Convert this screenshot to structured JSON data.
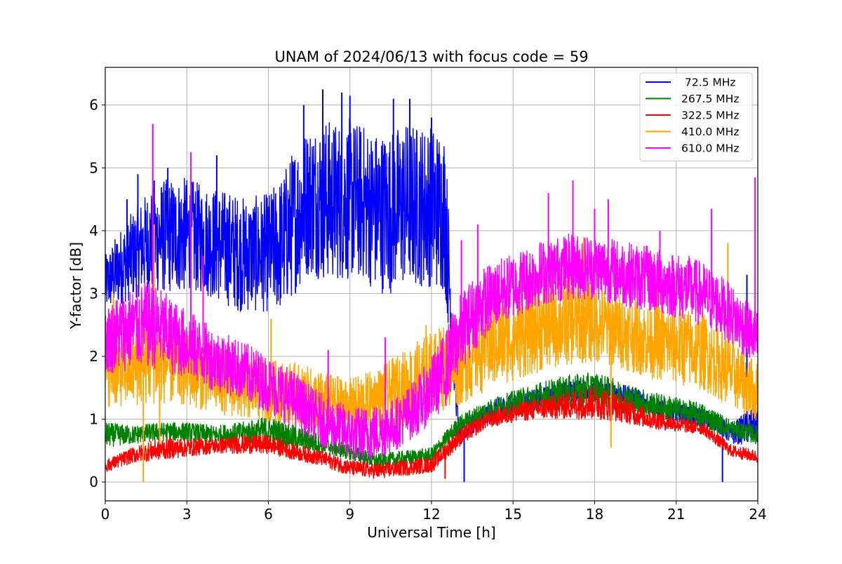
{
  "chart_data": {
    "type": "line",
    "title": "UNAM of 2024/06/13 with focus code = 59",
    "xlabel": "Universal Time [h]",
    "ylabel": "Y-factor [dB]",
    "xlim": [
      0,
      24
    ],
    "ylim": [
      -0.3,
      6.6
    ],
    "xticks": [
      0,
      3,
      6,
      9,
      12,
      15,
      18,
      21,
      24
    ],
    "yticks": [
      0,
      1,
      2,
      3,
      4,
      5,
      6
    ],
    "grid": true,
    "legend_position": "top-right",
    "series": [
      {
        "name": " 72.5 MHz",
        "color": "#0000ff",
        "x": [
          0,
          0.5,
          1,
          1.5,
          2,
          2.5,
          3,
          3.5,
          4,
          4.5,
          5,
          5.5,
          6,
          6.5,
          7,
          7.5,
          8,
          8.5,
          9,
          9.5,
          10,
          10.5,
          11,
          11.5,
          12,
          12.5,
          13,
          13.5,
          14,
          14.5,
          15,
          15.5,
          16,
          16.5,
          17,
          17.5,
          18,
          18.5,
          19,
          19.5,
          20,
          20.5,
          21,
          21.5,
          22,
          22.5,
          23,
          23.5,
          24
        ],
        "low": [
          2.7,
          2.8,
          2.9,
          3.0,
          3.0,
          3.0,
          3.0,
          3.0,
          2.9,
          2.8,
          2.7,
          2.7,
          2.7,
          2.7,
          3.0,
          3.3,
          3.2,
          3.2,
          3.2,
          3.2,
          3.0,
          3.0,
          3.1,
          3.1,
          3.1,
          3.0,
          0.6,
          0.75,
          0.9,
          1.0,
          1.05,
          1.1,
          1.15,
          1.2,
          1.25,
          1.3,
          1.3,
          1.3,
          1.25,
          1.2,
          1.1,
          1.0,
          0.95,
          0.9,
          0.85,
          0.8,
          0.6,
          0.6,
          0.6
        ],
        "high": [
          3.6,
          4.0,
          4.3,
          4.6,
          4.8,
          4.85,
          4.85,
          4.75,
          4.7,
          4.65,
          4.55,
          4.55,
          4.6,
          4.9,
          5.4,
          5.7,
          5.8,
          5.75,
          5.8,
          5.7,
          5.6,
          5.6,
          5.75,
          5.7,
          5.7,
          5.6,
          0.9,
          1.1,
          1.25,
          1.35,
          1.4,
          1.45,
          1.5,
          1.55,
          1.6,
          1.65,
          1.65,
          1.6,
          1.55,
          1.5,
          1.4,
          1.3,
          1.25,
          1.2,
          1.15,
          1.1,
          0.9,
          1.1,
          1.3
        ],
        "spikes": [
          [
            0.8,
            4.5
          ],
          [
            1.2,
            4.9
          ],
          [
            1.8,
            4.8
          ],
          [
            2.3,
            5.0
          ],
          [
            4.1,
            5.2
          ],
          [
            7.3,
            6.0
          ],
          [
            8.0,
            6.25
          ],
          [
            8.7,
            6.2
          ],
          [
            9.0,
            6.15
          ],
          [
            10.6,
            6.1
          ],
          [
            11.2,
            6.1
          ],
          [
            12.0,
            5.8
          ],
          [
            13.2,
            0.0
          ],
          [
            22.7,
            0.0
          ],
          [
            23.6,
            3.3
          ]
        ]
      },
      {
        "name": "267.5 MHz",
        "color": "#008000",
        "x": [
          0,
          1,
          2,
          3,
          4,
          5,
          6,
          7,
          8,
          9,
          10,
          11,
          12,
          13,
          14,
          15,
          16,
          17,
          18,
          19,
          20,
          21,
          22,
          23,
          24
        ],
        "low": [
          0.55,
          0.6,
          0.65,
          0.65,
          0.6,
          0.6,
          0.6,
          0.5,
          0.45,
          0.35,
          0.2,
          0.25,
          0.3,
          0.75,
          0.95,
          1.05,
          1.1,
          1.15,
          1.2,
          1.1,
          1.0,
          0.95,
          0.85,
          0.7,
          0.6
        ],
        "high": [
          0.95,
          0.9,
          0.95,
          0.95,
          0.9,
          0.95,
          1.05,
          0.9,
          0.75,
          0.6,
          0.45,
          0.5,
          0.55,
          1.05,
          1.3,
          1.45,
          1.6,
          1.7,
          1.75,
          1.6,
          1.45,
          1.35,
          1.25,
          1.0,
          0.9
        ],
        "spikes": []
      },
      {
        "name": "322.5 MHz",
        "color": "#ff0000",
        "x": [
          0,
          1,
          2,
          3,
          4,
          5,
          6,
          7,
          8,
          9,
          10,
          11,
          12,
          13,
          14,
          15,
          16,
          17,
          18,
          19,
          20,
          21,
          22,
          23,
          24
        ],
        "low": [
          0.15,
          0.3,
          0.35,
          0.4,
          0.45,
          0.45,
          0.45,
          0.35,
          0.25,
          0.1,
          0.05,
          0.1,
          0.15,
          0.55,
          0.85,
          0.95,
          1.0,
          1.0,
          1.0,
          0.95,
          0.85,
          0.8,
          0.75,
          0.4,
          0.3
        ],
        "high": [
          0.35,
          0.55,
          0.7,
          0.7,
          0.7,
          0.75,
          0.75,
          0.6,
          0.5,
          0.35,
          0.3,
          0.35,
          0.4,
          0.85,
          1.1,
          1.25,
          1.35,
          1.45,
          1.55,
          1.4,
          1.15,
          1.05,
          0.95,
          0.6,
          0.5
        ],
        "spikes": [
          [
            12.5,
            0.05
          ],
          [
            16.3,
            1.3
          ]
        ]
      },
      {
        "name": "410.0 MHz",
        "color": "#ffa500",
        "x": [
          0,
          1,
          2,
          3,
          4,
          5,
          6,
          7,
          8,
          9,
          10,
          11,
          12,
          13,
          14,
          15,
          16,
          17,
          18,
          19,
          20,
          21,
          22,
          23,
          24
        ],
        "low": [
          1.2,
          1.2,
          1.25,
          1.2,
          1.1,
          1.0,
          0.95,
          0.9,
          0.8,
          0.8,
          0.85,
          0.9,
          1.1,
          1.2,
          1.45,
          1.6,
          1.75,
          1.85,
          1.9,
          1.8,
          1.65,
          1.55,
          1.45,
          1.2,
          0.9
        ],
        "high": [
          2.4,
          2.4,
          2.6,
          2.4,
          2.2,
          2.0,
          1.95,
          1.9,
          1.75,
          1.65,
          1.8,
          2.1,
          2.4,
          2.6,
          2.85,
          3.0,
          3.2,
          3.25,
          3.2,
          3.0,
          2.85,
          2.8,
          2.7,
          2.3,
          1.9
        ],
        "spikes": [
          [
            0.3,
            3.0
          ],
          [
            1.4,
            0.0
          ],
          [
            1.8,
            4.1
          ],
          [
            2.0,
            0.6
          ],
          [
            6.1,
            2.6
          ],
          [
            11.8,
            2.5
          ],
          [
            15.5,
            3.6
          ],
          [
            17.6,
            3.9
          ],
          [
            18.6,
            0.55
          ],
          [
            20.3,
            3.4
          ],
          [
            22.9,
            3.8
          ]
        ]
      },
      {
        "name": "610.0 MHz",
        "color": "#ff00ff",
        "x": [
          0,
          0.5,
          1,
          1.5,
          2,
          2.5,
          3,
          3.5,
          4,
          4.5,
          5,
          5.5,
          6,
          6.5,
          7,
          7.5,
          8,
          8.5,
          9,
          9.5,
          10,
          10.5,
          11,
          11.5,
          12,
          12.5,
          13,
          13.5,
          14,
          14.5,
          15,
          15.5,
          16,
          16.5,
          17,
          17.5,
          18,
          18.5,
          19,
          19.5,
          20,
          20.5,
          21,
          21.5,
          22,
          22.5,
          23,
          23.5,
          24
        ],
        "low": [
          1.7,
          1.75,
          1.8,
          1.8,
          1.8,
          1.7,
          1.65,
          1.55,
          1.45,
          1.4,
          1.3,
          1.2,
          1.1,
          0.95,
          0.85,
          0.7,
          0.55,
          0.45,
          0.35,
          0.3,
          0.35,
          0.45,
          0.6,
          0.75,
          0.95,
          1.2,
          1.7,
          2.05,
          2.3,
          2.5,
          2.6,
          2.7,
          2.8,
          2.85,
          2.9,
          2.9,
          2.9,
          2.85,
          2.8,
          2.75,
          2.7,
          2.65,
          2.6,
          2.55,
          2.45,
          2.35,
          2.2,
          2.0,
          1.8
        ],
        "high": [
          2.8,
          3.0,
          3.1,
          3.2,
          3.1,
          2.9,
          2.75,
          2.6,
          2.45,
          2.35,
          2.25,
          2.15,
          2.0,
          1.9,
          1.75,
          1.55,
          1.4,
          1.3,
          1.2,
          1.2,
          1.25,
          1.3,
          1.45,
          1.7,
          2.0,
          2.4,
          2.95,
          3.25,
          3.45,
          3.55,
          3.65,
          3.75,
          3.85,
          3.9,
          3.95,
          3.95,
          3.95,
          3.9,
          3.85,
          3.8,
          3.75,
          3.7,
          3.65,
          3.6,
          3.5,
          3.35,
          3.15,
          2.95,
          2.7
        ],
        "spikes": [
          [
            1.75,
            5.7
          ],
          [
            3.15,
            5.25
          ],
          [
            3.6,
            3.6
          ],
          [
            8.2,
            2.1
          ],
          [
            10.3,
            2.3
          ],
          [
            13.1,
            3.85
          ],
          [
            13.7,
            4.1
          ],
          [
            16.3,
            4.6
          ],
          [
            17.2,
            4.8
          ],
          [
            18.0,
            4.35
          ],
          [
            18.5,
            4.5
          ],
          [
            20.4,
            4.0
          ],
          [
            22.3,
            4.35
          ],
          [
            23.9,
            4.85
          ]
        ]
      }
    ]
  }
}
